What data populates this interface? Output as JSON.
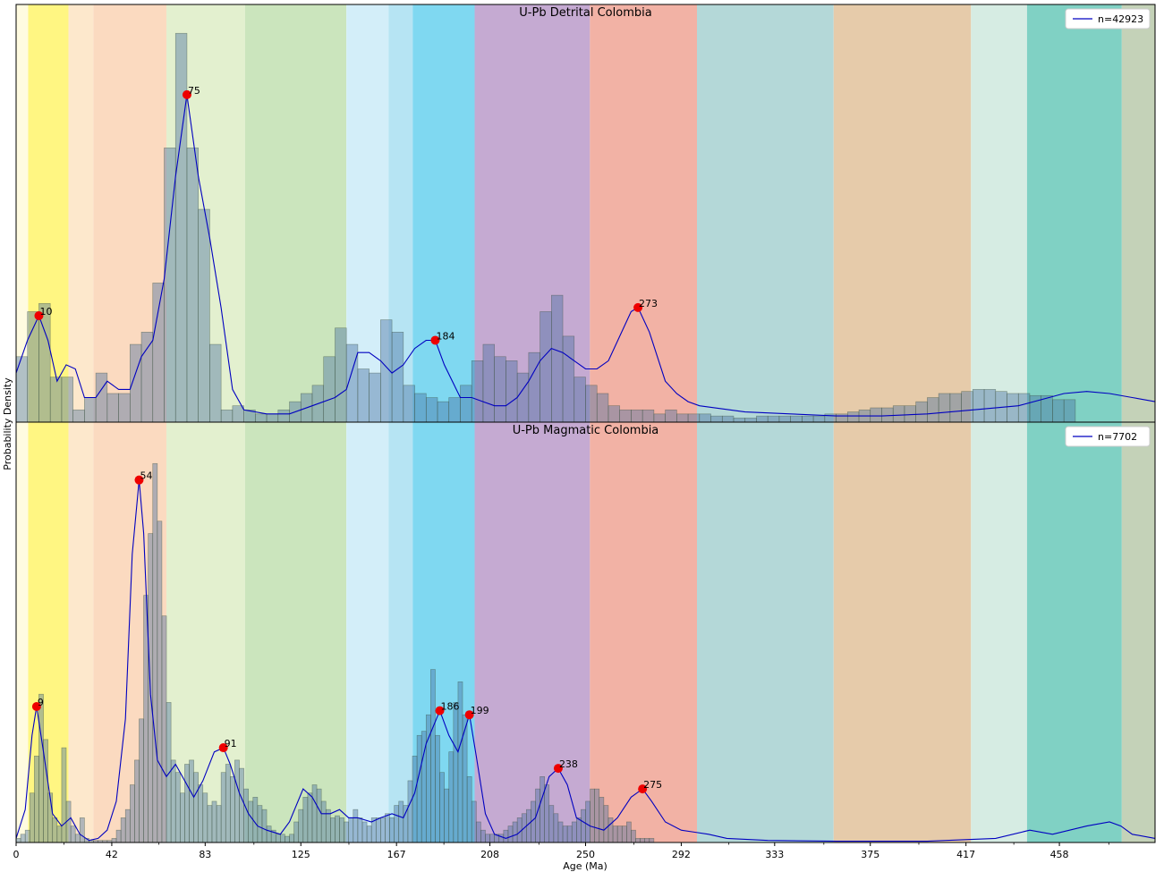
{
  "chart_data": {
    "type": "area",
    "xlabel": "Age (Ma)",
    "ylabel": "Probability Density",
    "xlim": [
      0,
      500
    ],
    "x_ticks": [
      "0",
      "42",
      "83",
      "125",
      "167",
      "208",
      "250",
      "292",
      "333",
      "375",
      "417",
      "458"
    ],
    "x_tick_values": [
      0,
      42,
      83,
      125,
      167,
      208,
      250,
      292,
      333,
      375,
      417,
      458
    ],
    "time_bands": [
      {
        "from": 0,
        "to": 5.3,
        "color": "#fffbe0"
      },
      {
        "from": 5.3,
        "to": 23,
        "color": "#fff682"
      },
      {
        "from": 23,
        "to": 33.9,
        "color": "#fde8cc"
      },
      {
        "from": 33.9,
        "to": 66,
        "color": "#fbdac0"
      },
      {
        "from": 66,
        "to": 100.5,
        "color": "#e3f0cf"
      },
      {
        "from": 100.5,
        "to": 145,
        "color": "#cbe5bd"
      },
      {
        "from": 145,
        "to": 163.5,
        "color": "#d3eef9"
      },
      {
        "from": 163.5,
        "to": 174.1,
        "color": "#b6e4f3"
      },
      {
        "from": 174.1,
        "to": 201.3,
        "color": "#7fd8f1"
      },
      {
        "from": 201.3,
        "to": 251.9,
        "color": "#c5aad2"
      },
      {
        "from": 251.9,
        "to": 298.9,
        "color": "#f2b2a5"
      },
      {
        "from": 298.9,
        "to": 358.9,
        "color": "#b4d8d8"
      },
      {
        "from": 358.9,
        "to": 419.2,
        "color": "#e6cbaa"
      },
      {
        "from": 419.2,
        "to": 443.8,
        "color": "#d6ece3"
      },
      {
        "from": 443.8,
        "to": 485.4,
        "color": "#80d1c4"
      },
      {
        "from": 485.4,
        "to": 500,
        "color": "#c4d2b8"
      }
    ],
    "panels": [
      {
        "title": "U-Pb Detrital Colombia",
        "legend": "n=42923",
        "ymax": 1.0,
        "bin_width": 5,
        "hist": [
          0.16,
          0.27,
          0.29,
          0.11,
          0.11,
          0.03,
          0.06,
          0.12,
          0.07,
          0.07,
          0.19,
          0.22,
          0.34,
          0.67,
          0.95,
          0.67,
          0.52,
          0.19,
          0.03,
          0.04,
          0.03,
          0.02,
          0.02,
          0.03,
          0.05,
          0.07,
          0.09,
          0.16,
          0.23,
          0.19,
          0.13,
          0.12,
          0.25,
          0.22,
          0.09,
          0.07,
          0.06,
          0.05,
          0.06,
          0.09,
          0.15,
          0.19,
          0.16,
          0.15,
          0.12,
          0.17,
          0.27,
          0.31,
          0.21,
          0.11,
          0.09,
          0.07,
          0.04,
          0.03,
          0.03,
          0.03,
          0.02,
          0.03,
          0.02,
          0.02,
          0.02,
          0.015,
          0.015,
          0.01,
          0.01,
          0.015,
          0.015,
          0.015,
          0.015,
          0.015,
          0.015,
          0.02,
          0.02,
          0.025,
          0.03,
          0.035,
          0.035,
          0.04,
          0.04,
          0.05,
          0.06,
          0.07,
          0.07,
          0.075,
          0.08,
          0.08,
          0.075,
          0.07,
          0.07,
          0.065,
          0.065,
          0.055,
          0.055
        ],
        "kde": [
          [
            0,
            0.12
          ],
          [
            5,
            0.2
          ],
          [
            10,
            0.26
          ],
          [
            14,
            0.2
          ],
          [
            18,
            0.1
          ],
          [
            22,
            0.14
          ],
          [
            26,
            0.13
          ],
          [
            30,
            0.06
          ],
          [
            35,
            0.06
          ],
          [
            40,
            0.1
          ],
          [
            45,
            0.08
          ],
          [
            50,
            0.08
          ],
          [
            55,
            0.16
          ],
          [
            60,
            0.2
          ],
          [
            65,
            0.35
          ],
          [
            70,
            0.6
          ],
          [
            75,
            0.8
          ],
          [
            80,
            0.6
          ],
          [
            85,
            0.45
          ],
          [
            90,
            0.28
          ],
          [
            95,
            0.08
          ],
          [
            100,
            0.03
          ],
          [
            110,
            0.02
          ],
          [
            120,
            0.02
          ],
          [
            130,
            0.04
          ],
          [
            140,
            0.06
          ],
          [
            145,
            0.08
          ],
          [
            150,
            0.17
          ],
          [
            155,
            0.17
          ],
          [
            160,
            0.15
          ],
          [
            165,
            0.12
          ],
          [
            170,
            0.14
          ],
          [
            175,
            0.18
          ],
          [
            180,
            0.2
          ],
          [
            184,
            0.2
          ],
          [
            188,
            0.14
          ],
          [
            195,
            0.06
          ],
          [
            200,
            0.06
          ],
          [
            205,
            0.05
          ],
          [
            210,
            0.04
          ],
          [
            215,
            0.04
          ],
          [
            220,
            0.06
          ],
          [
            225,
            0.1
          ],
          [
            230,
            0.15
          ],
          [
            235,
            0.18
          ],
          [
            240,
            0.17
          ],
          [
            245,
            0.15
          ],
          [
            250,
            0.13
          ],
          [
            255,
            0.13
          ],
          [
            260,
            0.15
          ],
          [
            265,
            0.21
          ],
          [
            270,
            0.27
          ],
          [
            273,
            0.28
          ],
          [
            278,
            0.22
          ],
          [
            285,
            0.1
          ],
          [
            290,
            0.07
          ],
          [
            295,
            0.05
          ],
          [
            300,
            0.04
          ],
          [
            320,
            0.025
          ],
          [
            340,
            0.02
          ],
          [
            360,
            0.015
          ],
          [
            380,
            0.015
          ],
          [
            400,
            0.02
          ],
          [
            420,
            0.03
          ],
          [
            440,
            0.04
          ],
          [
            460,
            0.07
          ],
          [
            470,
            0.075
          ],
          [
            480,
            0.07
          ],
          [
            490,
            0.06
          ],
          [
            500,
            0.05
          ]
        ],
        "peaks": [
          {
            "x": 10,
            "y": 0.26,
            "label": "10"
          },
          {
            "x": 75,
            "y": 0.8,
            "label": "75"
          },
          {
            "x": 184,
            "y": 0.2,
            "label": "184"
          },
          {
            "x": 273,
            "y": 0.28,
            "label": "273"
          }
        ]
      },
      {
        "title": "U-Pb Magmatic Colombia",
        "legend": "n=7702",
        "ymax": 1.0,
        "bin_width": 2,
        "hist": [
          0.01,
          0.02,
          0.03,
          0.12,
          0.21,
          0.36,
          0.25,
          0.12,
          0.06,
          0.04,
          0.23,
          0.1,
          0.04,
          0.02,
          0.06,
          0.01,
          0.005,
          0.005,
          0.005,
          0.005,
          0.005,
          0.01,
          0.03,
          0.06,
          0.08,
          0.14,
          0.2,
          0.3,
          0.6,
          0.75,
          0.92,
          0.78,
          0.55,
          0.34,
          0.2,
          0.17,
          0.12,
          0.19,
          0.2,
          0.17,
          0.14,
          0.12,
          0.09,
          0.1,
          0.09,
          0.17,
          0.19,
          0.16,
          0.2,
          0.18,
          0.13,
          0.1,
          0.11,
          0.09,
          0.08,
          0.04,
          0.03,
          0.02,
          0.02,
          0.015,
          0.02,
          0.05,
          0.08,
          0.11,
          0.12,
          0.14,
          0.13,
          0.1,
          0.08,
          0.06,
          0.065,
          0.06,
          0.05,
          0.06,
          0.08,
          0.06,
          0.05,
          0.04,
          0.06,
          0.06,
          0.06,
          0.07,
          0.06,
          0.09,
          0.1,
          0.09,
          0.15,
          0.21,
          0.26,
          0.27,
          0.31,
          0.42,
          0.26,
          0.17,
          0.13,
          0.22,
          0.34,
          0.39,
          0.31,
          0.16,
          0.1,
          0.05,
          0.03,
          0.02,
          0.02,
          0.02,
          0.02,
          0.03,
          0.04,
          0.05,
          0.06,
          0.07,
          0.08,
          0.1,
          0.13,
          0.16,
          0.14,
          0.09,
          0.07,
          0.05,
          0.04,
          0.04,
          0.05,
          0.06,
          0.08,
          0.1,
          0.13,
          0.13,
          0.11,
          0.09,
          0.06,
          0.04,
          0.04,
          0.04,
          0.05,
          0.03,
          0.01,
          0.01,
          0.01,
          0.01
        ],
        "kde": [
          [
            0,
            0.01
          ],
          [
            4,
            0.08
          ],
          [
            7,
            0.26
          ],
          [
            9,
            0.33
          ],
          [
            12,
            0.22
          ],
          [
            16,
            0.07
          ],
          [
            20,
            0.04
          ],
          [
            24,
            0.06
          ],
          [
            28,
            0.02
          ],
          [
            32,
            0.005
          ],
          [
            36,
            0.01
          ],
          [
            40,
            0.03
          ],
          [
            44,
            0.1
          ],
          [
            48,
            0.3
          ],
          [
            51,
            0.7
          ],
          [
            54,
            0.88
          ],
          [
            56,
            0.75
          ],
          [
            59,
            0.36
          ],
          [
            62,
            0.2
          ],
          [
            66,
            0.16
          ],
          [
            70,
            0.19
          ],
          [
            74,
            0.15
          ],
          [
            78,
            0.11
          ],
          [
            82,
            0.15
          ],
          [
            87,
            0.22
          ],
          [
            91,
            0.23
          ],
          [
            94,
            0.19
          ],
          [
            98,
            0.12
          ],
          [
            102,
            0.07
          ],
          [
            106,
            0.04
          ],
          [
            110,
            0.03
          ],
          [
            116,
            0.02
          ],
          [
            120,
            0.05
          ],
          [
            126,
            0.13
          ],
          [
            130,
            0.11
          ],
          [
            134,
            0.07
          ],
          [
            138,
            0.07
          ],
          [
            142,
            0.08
          ],
          [
            146,
            0.06
          ],
          [
            150,
            0.06
          ],
          [
            156,
            0.05
          ],
          [
            160,
            0.06
          ],
          [
            165,
            0.07
          ],
          [
            170,
            0.06
          ],
          [
            175,
            0.12
          ],
          [
            180,
            0.24
          ],
          [
            186,
            0.32
          ],
          [
            190,
            0.26
          ],
          [
            194,
            0.22
          ],
          [
            199,
            0.31
          ],
          [
            202,
            0.21
          ],
          [
            206,
            0.07
          ],
          [
            210,
            0.02
          ],
          [
            215,
            0.01
          ],
          [
            220,
            0.02
          ],
          [
            228,
            0.06
          ],
          [
            234,
            0.16
          ],
          [
            238,
            0.18
          ],
          [
            242,
            0.14
          ],
          [
            246,
            0.06
          ],
          [
            252,
            0.04
          ],
          [
            258,
            0.03
          ],
          [
            264,
            0.06
          ],
          [
            270,
            0.11
          ],
          [
            275,
            0.13
          ],
          [
            279,
            0.1
          ],
          [
            285,
            0.05
          ],
          [
            292,
            0.03
          ],
          [
            298,
            0.025
          ],
          [
            304,
            0.02
          ],
          [
            312,
            0.01
          ],
          [
            330,
            0.005
          ],
          [
            360,
            0.003
          ],
          [
            400,
            0.003
          ],
          [
            430,
            0.01
          ],
          [
            445,
            0.03
          ],
          [
            455,
            0.02
          ],
          [
            470,
            0.04
          ],
          [
            480,
            0.05
          ],
          [
            485,
            0.04
          ],
          [
            490,
            0.02
          ],
          [
            500,
            0.01
          ]
        ],
        "peaks": [
          {
            "x": 9,
            "y": 0.33,
            "label": "9"
          },
          {
            "x": 54,
            "y": 0.88,
            "label": "54"
          },
          {
            "x": 91,
            "y": 0.23,
            "label": "91"
          },
          {
            "x": 186,
            "y": 0.32,
            "label": "186"
          },
          {
            "x": 199,
            "y": 0.31,
            "label": "199"
          },
          {
            "x": 238,
            "y": 0.18,
            "label": "238"
          },
          {
            "x": 275,
            "y": 0.13,
            "label": "275"
          }
        ]
      }
    ]
  }
}
